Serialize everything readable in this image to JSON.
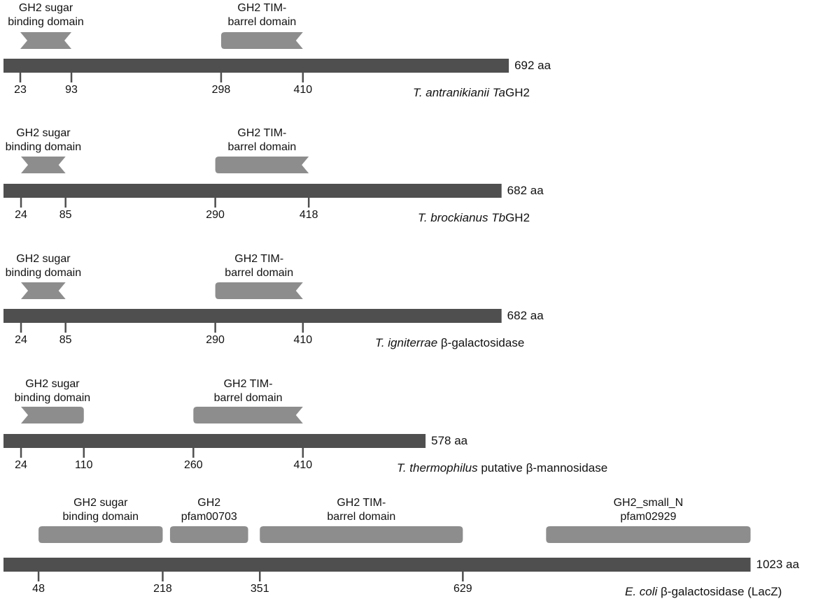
{
  "proteins": [
    {
      "id": "tagh2",
      "length": 692,
      "length_label": "692 aa",
      "species_italic": "T. antranikianii ",
      "species_prefix_italic": "Ta",
      "species_suffix": "GH2",
      "domains": [
        {
          "line1": "GH2 sugar",
          "line2": "binding domain",
          "start": 23,
          "end": 93,
          "shape": "chevron"
        },
        {
          "line1": "GH2 TIM-",
          "line2": "barrel domain",
          "start": 298,
          "end": 410,
          "shape": "rounded-notch"
        }
      ],
      "ticks": [
        23,
        93,
        298,
        410
      ]
    },
    {
      "id": "tbgh2",
      "length": 682,
      "length_label": "682 aa",
      "species_italic": "T. brockianus ",
      "species_prefix_italic": "Tb",
      "species_suffix": "GH2",
      "domains": [
        {
          "line1": "GH2 sugar",
          "line2": "binding domain",
          "start": 24,
          "end": 85,
          "shape": "chevron"
        },
        {
          "line1": "GH2 TIM-",
          "line2": "barrel domain",
          "start": 290,
          "end": 418,
          "shape": "rounded-notch"
        }
      ],
      "ticks": [
        24,
        85,
        290,
        418
      ]
    },
    {
      "id": "tigniterrae",
      "length": 682,
      "length_label": "682 aa",
      "species_italic": "T. igniterrae",
      "species_prefix_italic": "",
      "species_suffix": " β-galactosidase",
      "domains": [
        {
          "line1": "GH2 sugar",
          "line2": "binding domain",
          "start": 24,
          "end": 85,
          "shape": "chevron"
        },
        {
          "line1": "GH2 TIM-",
          "line2": "barrel domain",
          "start": 290,
          "end": 410,
          "shape": "rounded-notch"
        }
      ],
      "ticks": [
        24,
        85,
        290,
        410
      ]
    },
    {
      "id": "tthermophilus",
      "length": 578,
      "length_label": "578 aa",
      "species_italic": "T. thermophilus",
      "species_prefix_italic": "",
      "species_suffix": " putative β-mannosidase",
      "domains": [
        {
          "line1": "GH2 sugar",
          "line2": "binding domain",
          "start": 24,
          "end": 110,
          "shape": "notch-rounded"
        },
        {
          "line1": "GH2 TIM-",
          "line2": "barrel domain",
          "start": 260,
          "end": 410,
          "shape": "rounded-notch"
        }
      ],
      "ticks": [
        24,
        110,
        260,
        410
      ]
    },
    {
      "id": "lacz",
      "length": 1023,
      "length_label": "1023 aa",
      "species_italic": "E. coli",
      "species_prefix_italic": "",
      "species_suffix": " β-galactosidase (LacZ)",
      "domains": [
        {
          "line1": "GH2 sugar",
          "line2": "binding domain",
          "start": 48,
          "end": 218,
          "shape": "rounded"
        },
        {
          "line1": "GH2",
          "line2": "pfam00703",
          "start": 228,
          "end": 335,
          "shape": "rounded"
        },
        {
          "line1": "GH2 TIM-",
          "line2": "barrel domain",
          "start": 351,
          "end": 629,
          "shape": "rounded"
        },
        {
          "line1": "GH2_small_N",
          "line2": "pfam02929",
          "start": 743,
          "end": 1023,
          "shape": "rounded"
        }
      ],
      "ticks": [
        48,
        218,
        351,
        629
      ]
    }
  ],
  "colors": {
    "bar": "#4f4f4f",
    "domain": "#8d8d8d",
    "tick": "#4f4f4f",
    "text": "#111111"
  }
}
